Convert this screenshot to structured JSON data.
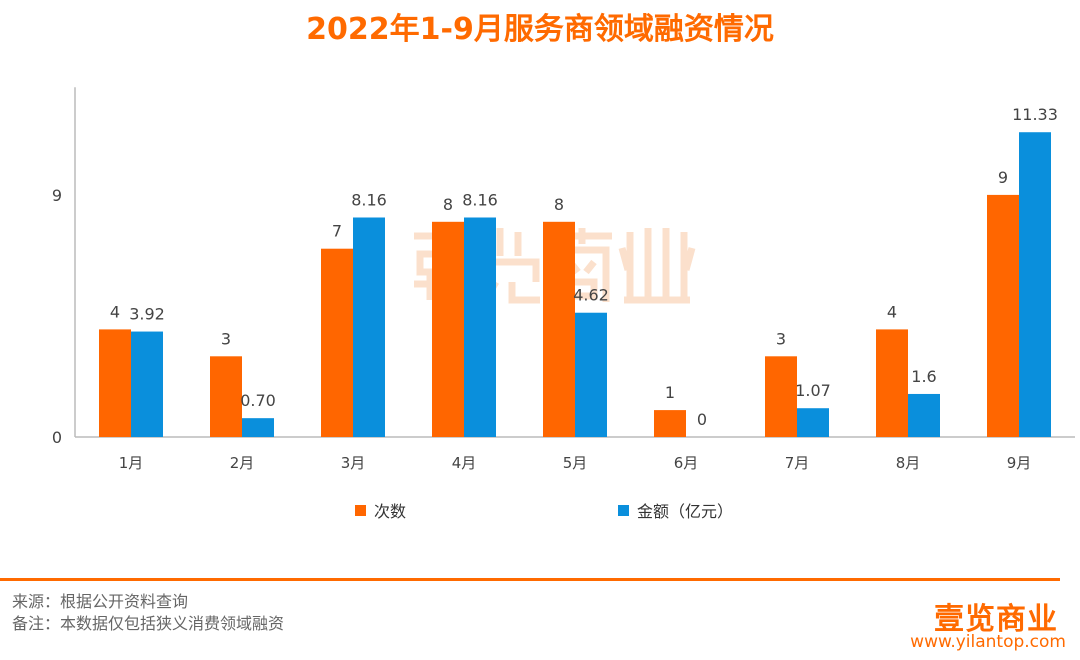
{
  "title": "2022年1-9月服务商领域融资情况",
  "chart_data": {
    "type": "bar",
    "title": "2022年1-9月服务商领域融资情况",
    "categories": [
      "1月",
      "2月",
      "3月",
      "4月",
      "5月",
      "6月",
      "7月",
      "8月",
      "9月"
    ],
    "series": [
      {
        "name": "次数",
        "color": "#ff6600",
        "values": [
          4,
          3,
          7,
          8,
          8,
          1,
          3,
          4,
          9
        ],
        "labels": [
          "4",
          "3",
          "7",
          "8",
          "8",
          "1",
          "3",
          "4",
          "9"
        ]
      },
      {
        "name": "金额（亿元）",
        "color": "#0a8fdc",
        "values": [
          3.92,
          0.7,
          8.16,
          8.16,
          4.62,
          0,
          1.07,
          1.6,
          11.33
        ],
        "labels": [
          "3.92",
          "0.70",
          "8.16",
          "8.16",
          "4.62",
          "0",
          "1.07",
          "1.6",
          "11.33"
        ]
      }
    ],
    "yticks": [
      "0",
      "9"
    ],
    "ylim": [
      0,
      13
    ],
    "grid": false,
    "legend": "bottom"
  },
  "watermark": "壹览商业",
  "footer": {
    "source": "来源：根据公开资料查询",
    "note": "备注：本数据仅包括狭义消费领域融资",
    "logo": "壹览商业",
    "site": "www.yilantop.com"
  }
}
